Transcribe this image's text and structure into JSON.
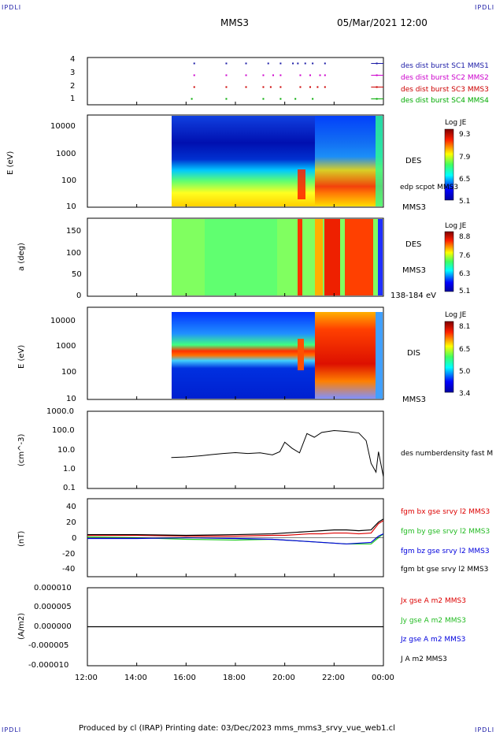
{
  "header": {
    "corner_label": "IPDLI",
    "spacecraft": "MMS3",
    "datetime": "05/Mar/2021 12:00"
  },
  "footer": {
    "text": "Produced by cl (IRAP)   Printing date: 03/Dec/2023   mms_mms3_srvy_vue_web1.cl"
  },
  "colors": {
    "sc1": "#1a1aa6",
    "sc2": "#cc00cc",
    "sc3": "#cc0000",
    "sc4": "#00aa00",
    "bx": "#dd0000",
    "by": "#22cc22",
    "bz": "#0000dd",
    "bt": "#000000"
  },
  "chart_data": [
    {
      "type": "scatter",
      "panel": "availability",
      "ylim": [
        0.5,
        4.5
      ],
      "yticks": [
        "4",
        "3",
        "2",
        "1"
      ],
      "legend": [
        {
          "label": "des dist burst SC1 MMS1",
          "color": "#1a1aa6"
        },
        {
          "label": "des dist burst SC2 MMS2",
          "color": "#cc00cc"
        },
        {
          "label": "des dist burst SC3 MMS3",
          "color": "#cc0000"
        },
        {
          "label": "des dist burst SC4 MMS4",
          "color": "#00aa00"
        }
      ],
      "series": [
        {
          "values": [
            16.3,
            17.6,
            18.4,
            19.3,
            19.8,
            20.3,
            20.5,
            20.8,
            21.1,
            21.6,
            23.7
          ]
        },
        {
          "values": [
            16.3,
            17.6,
            18.4,
            19.1,
            19.5,
            19.8,
            20.6,
            21.0,
            21.4,
            21.6,
            23.7
          ]
        },
        {
          "values": [
            16.3,
            17.6,
            18.4,
            19.1,
            19.4,
            19.8,
            20.6,
            21.0,
            21.3,
            21.6,
            23.7
          ]
        },
        {
          "values": [
            16.2,
            17.6,
            19.1,
            19.8,
            20.4,
            21.1,
            23.7
          ]
        }
      ]
    },
    {
      "type": "heatmap",
      "panel": "des-energy",
      "ylabel": "E (eV)",
      "yticks": [
        "10000",
        "1000",
        "100",
        "10"
      ],
      "right_labels": [
        "DES",
        "edp scpot MMS3",
        "MMS3"
      ],
      "colorbar": {
        "title": "Log JE",
        "ticks": [
          "9.3",
          "7.9",
          "6.5",
          "5.1"
        ]
      }
    },
    {
      "type": "heatmap",
      "panel": "des-pitch",
      "ylabel": "a (deg)",
      "yticks": [
        "150",
        "100",
        "50",
        "0"
      ],
      "right_labels": [
        "DES",
        "MMS3",
        "138-184 eV"
      ],
      "colorbar": {
        "title": "Log JE",
        "ticks": [
          "8.8",
          "7.6",
          "6.3",
          "5.1"
        ]
      }
    },
    {
      "type": "heatmap",
      "panel": "dis-energy",
      "ylabel": "E (eV)",
      "yticks": [
        "10000",
        "1000",
        "100",
        "10"
      ],
      "right_labels": [
        "DIS",
        "MMS3"
      ],
      "colorbar": {
        "title": "Log JE",
        "ticks": [
          "8.1",
          "6.5",
          "5.0",
          "3.4"
        ]
      }
    },
    {
      "type": "line",
      "panel": "density",
      "ylabel": "(cm^-3)",
      "yticks": [
        "1000.0",
        "100.0",
        "10.0",
        "1.0",
        "0.1"
      ],
      "ylim": [
        0.1,
        1000
      ],
      "legend": [
        "des numberdensity fast M"
      ],
      "x": [
        15.4,
        16.0,
        16.5,
        17.0,
        17.5,
        18.0,
        18.5,
        19.0,
        19.5,
        19.8,
        20.0,
        20.3,
        20.6,
        20.9,
        21.2,
        21.5,
        22.0,
        22.5,
        23.0,
        23.3,
        23.5,
        23.7,
        23.8,
        24.0
      ],
      "values": [
        4.0,
        4.3,
        4.8,
        5.6,
        6.5,
        7.2,
        6.5,
        7.0,
        5.5,
        8.0,
        25,
        12,
        7.0,
        70,
        45,
        80,
        100,
        90,
        75,
        30,
        2.0,
        0.7,
        8.0,
        0.4
      ]
    },
    {
      "type": "line",
      "panel": "magnetic-field",
      "ylabel": "(nT)",
      "yticks": [
        "40",
        "20",
        "0",
        "-20",
        "-40"
      ],
      "ylim": [
        -50,
        50
      ],
      "legend": [
        "fgm bx gse srvy l2 MMS3",
        "fgm by gse srvy l2 MMS3",
        "fgm bz gse srvy l2 MMS3",
        "fgm bt gse srvy l2 MMS3"
      ],
      "x": [
        12.0,
        14.0,
        16.0,
        18.0,
        19.5,
        20.0,
        20.5,
        21.0,
        21.5,
        22.0,
        22.5,
        23.0,
        23.5,
        23.8,
        24.0
      ],
      "series": [
        {
          "values": [
            3,
            3,
            2,
            2,
            3,
            3,
            4,
            5,
            5,
            6,
            6,
            5,
            6,
            18,
            22
          ]
        },
        {
          "values": [
            1,
            0,
            -2,
            -3,
            -2,
            -3,
            -4,
            -5,
            -6,
            -7,
            -8,
            -8,
            -8,
            0,
            5
          ]
        },
        {
          "values": [
            -1,
            -1,
            0,
            -1,
            -2,
            -3,
            -4,
            -5,
            -6,
            -7,
            -8,
            -7,
            -6,
            2,
            5
          ]
        },
        {
          "values": [
            4,
            4,
            3,
            4,
            5,
            6,
            7,
            8,
            9,
            10,
            10,
            9,
            10,
            20,
            24
          ]
        }
      ]
    },
    {
      "type": "line",
      "panel": "current-density",
      "ylabel": "(A/m2)",
      "yticks": [
        "0.000010",
        "0.000005",
        "0.000000",
        "-0.000005",
        "-0.000010"
      ],
      "ylim": [
        -1e-05,
        1e-05
      ],
      "legend": [
        "Jx gse A m2 MMS3",
        "Jy gse A m2 MMS3",
        "Jz gse A m2 MMS3",
        "J A m2 MMS3"
      ]
    }
  ],
  "x_axis": {
    "ticks": [
      "12:00",
      "14:00",
      "16:00",
      "18:00",
      "20:00",
      "22:00",
      "00:00"
    ],
    "range": [
      12,
      24
    ]
  }
}
